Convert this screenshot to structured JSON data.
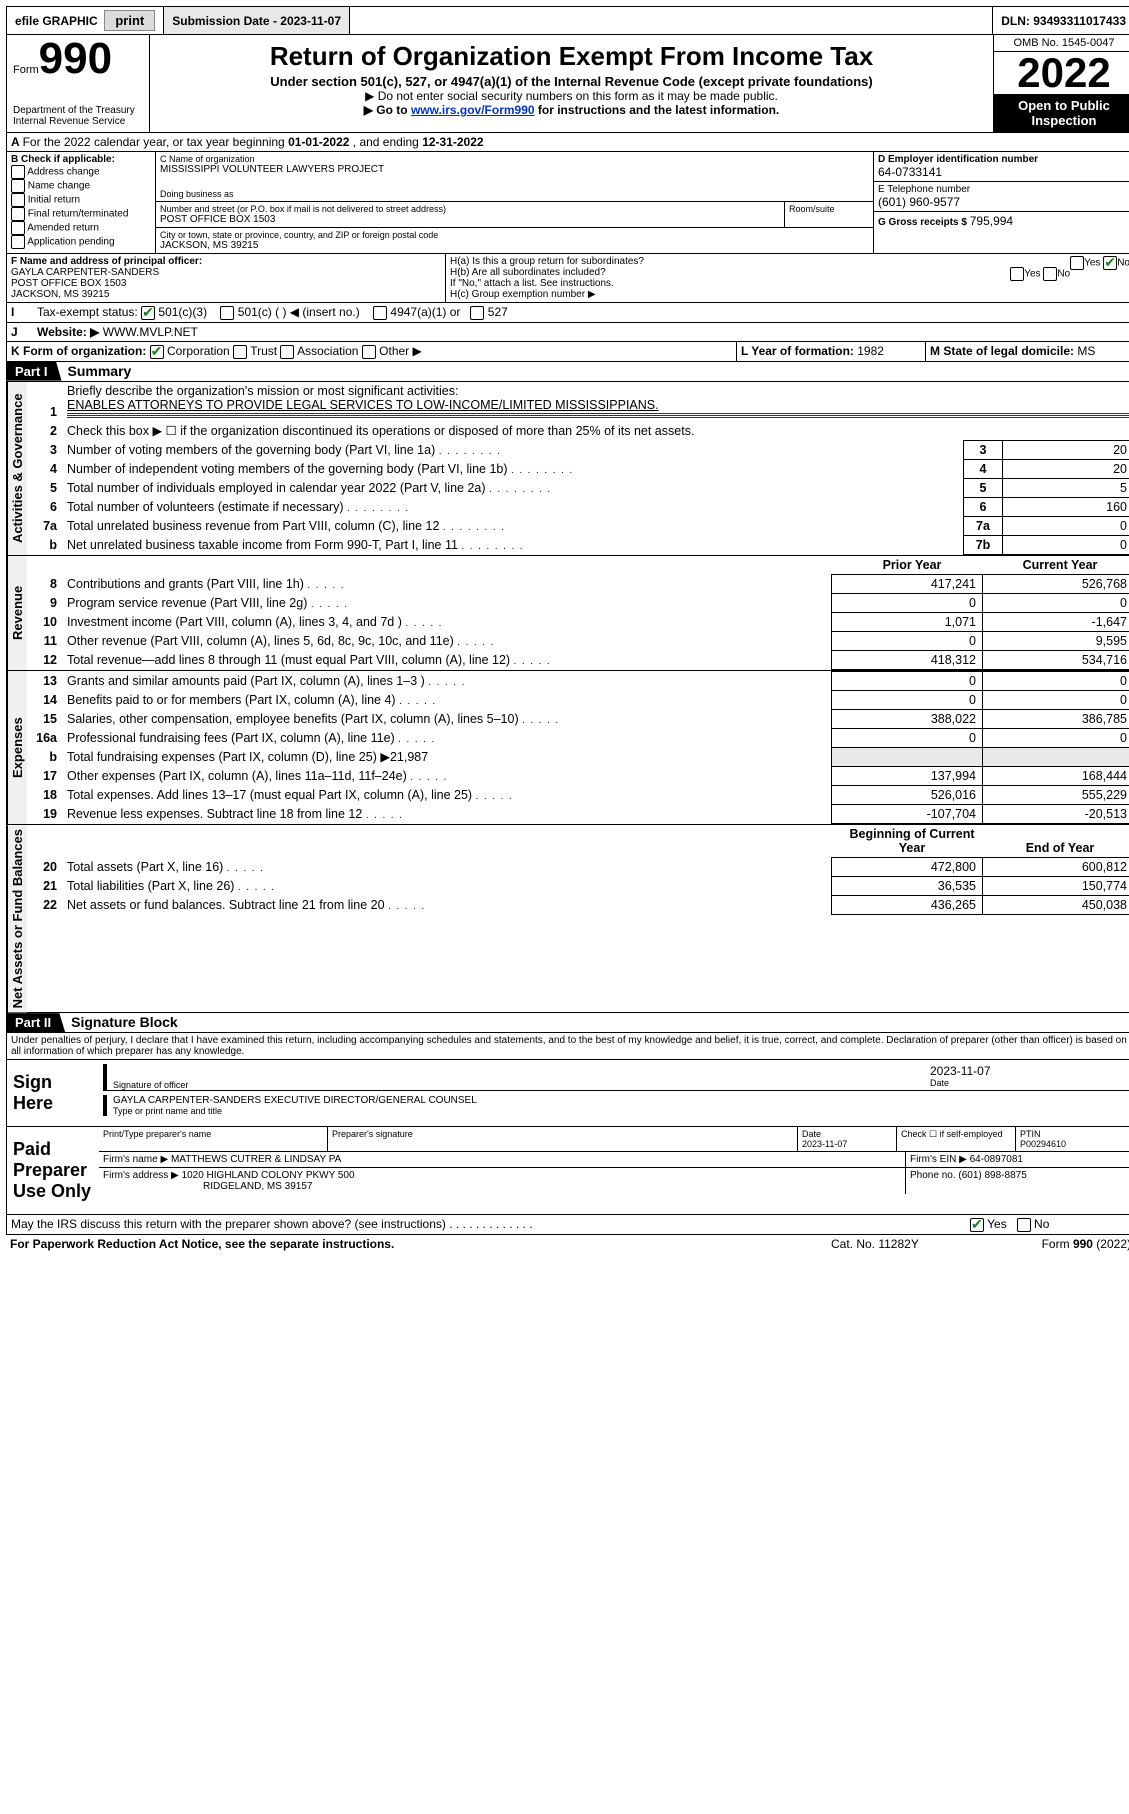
{
  "topbar": {
    "efile": "efile GRAPHIC",
    "print": "print",
    "submission_label": "Submission Date - ",
    "submission_date": "2023-11-07",
    "dln_label": "DLN: ",
    "dln": "93493311017433"
  },
  "header": {
    "form_label": "Form",
    "form_number": "990",
    "dept": "Department of the Treasury",
    "irs": "Internal Revenue Service",
    "title": "Return of Organization Exempt From Income Tax",
    "sub1": "Under section 501(c), 527, or 4947(a)(1) of the Internal Revenue Code (except private foundations)",
    "sub2": "▶ Do not enter social security numbers on this form as it may be made public.",
    "sub3_prefix": "▶ Go to ",
    "sub3_link": "www.irs.gov/Form990",
    "sub3_suffix": " for instructions and the latest information.",
    "omb": "OMB No. 1545-0047",
    "year": "2022",
    "inspect": "Open to Public Inspection"
  },
  "periodA": {
    "text_prefix": "For the 2022 calendar year, or tax year beginning ",
    "begin": "01-01-2022",
    "mid": " , and ending ",
    "end": "12-31-2022"
  },
  "boxB": {
    "label": "B Check if applicable:",
    "items": [
      "Address change",
      "Name change",
      "Initial return",
      "Final return/terminated",
      "Amended return",
      "Application pending"
    ]
  },
  "boxC": {
    "label": "C Name of organization",
    "name": "MISSISSIPPI VOLUNTEER LAWYERS PROJECT",
    "dba_label": "Doing business as",
    "street_label": "Number and street (or P.O. box if mail is not delivered to street address)",
    "room_label": "Room/suite",
    "street": "POST OFFICE BOX 1503",
    "city_label": "City or town, state or province, country, and ZIP or foreign postal code",
    "city": "JACKSON, MS  39215"
  },
  "boxD": {
    "label": "D Employer identification number",
    "value": "64-0733141"
  },
  "boxE": {
    "label": "E Telephone number",
    "value": "(601) 960-9577"
  },
  "boxG": {
    "label": "G Gross receipts $ ",
    "value": "795,994"
  },
  "boxF": {
    "label": "F Name and address of principal officer:",
    "name": "GAYLA CARPENTER-SANDERS",
    "addr1": "POST OFFICE BOX 1503",
    "addr2": "JACKSON, MS  39215"
  },
  "boxH": {
    "a": "H(a)  Is this a group return for subordinates?",
    "b": "H(b)  Are all subordinates included?",
    "bnote": "If \"No,\" attach a list. See instructions.",
    "c": "H(c)  Group exemption number ▶"
  },
  "boxI": {
    "label": "Tax-exempt status:",
    "opts": [
      "501(c)(3)",
      "501(c) (  ) ◀ (insert no.)",
      "4947(a)(1) or",
      "527"
    ]
  },
  "boxJ": {
    "label": "Website: ▶",
    "value": "WWW.MVLP.NET"
  },
  "boxK": {
    "label": "K Form of organization:",
    "opts": [
      "Corporation",
      "Trust",
      "Association",
      "Other ▶"
    ]
  },
  "boxL": {
    "label": "L Year of formation: ",
    "value": "1982"
  },
  "boxM": {
    "label": "M State of legal domicile: ",
    "value": "MS"
  },
  "part1": {
    "tab": "Part I",
    "title": "Summary",
    "line1_label": "Briefly describe the organization's mission or most significant activities:",
    "line1_text": "ENABLES ATTORNEYS TO PROVIDE LEGAL SERVICES TO LOW-INCOME/LIMITED MISSISSIPPIANS.",
    "line2": "Check this box ▶ ☐  if the organization discontinued its operations or disposed of more than 25% of its net assets.",
    "governance_label": "Activities & Governance",
    "revenue_label": "Revenue",
    "expenses_label": "Expenses",
    "netassets_label": "Net Assets or Fund Balances",
    "prior_year": "Prior Year",
    "current_year": "Current Year",
    "beg_year": "Beginning of Current Year",
    "end_year": "End of Year",
    "lines_gov": [
      {
        "n": "3",
        "t": "Number of voting members of the governing body (Part VI, line 1a)",
        "box": "3",
        "v": "20"
      },
      {
        "n": "4",
        "t": "Number of independent voting members of the governing body (Part VI, line 1b)",
        "box": "4",
        "v": "20"
      },
      {
        "n": "5",
        "t": "Total number of individuals employed in calendar year 2022 (Part V, line 2a)",
        "box": "5",
        "v": "5"
      },
      {
        "n": "6",
        "t": "Total number of volunteers (estimate if necessary)",
        "box": "6",
        "v": "160"
      },
      {
        "n": "7a",
        "t": "Total unrelated business revenue from Part VIII, column (C), line 12",
        "box": "7a",
        "v": "0"
      },
      {
        "n": "b",
        "t": "Net unrelated business taxable income from Form 990-T, Part I, line 11",
        "box": "7b",
        "v": "0"
      }
    ],
    "lines_rev": [
      {
        "n": "8",
        "t": "Contributions and grants (Part VIII, line 1h)",
        "p": "417,241",
        "c": "526,768"
      },
      {
        "n": "9",
        "t": "Program service revenue (Part VIII, line 2g)",
        "p": "0",
        "c": "0"
      },
      {
        "n": "10",
        "t": "Investment income (Part VIII, column (A), lines 3, 4, and 7d )",
        "p": "1,071",
        "c": "-1,647"
      },
      {
        "n": "11",
        "t": "Other revenue (Part VIII, column (A), lines 5, 6d, 8c, 9c, 10c, and 11e)",
        "p": "0",
        "c": "9,595"
      },
      {
        "n": "12",
        "t": "Total revenue—add lines 8 through 11 (must equal Part VIII, column (A), line 12)",
        "p": "418,312",
        "c": "534,716"
      }
    ],
    "lines_exp": [
      {
        "n": "13",
        "t": "Grants and similar amounts paid (Part IX, column (A), lines 1–3 )",
        "p": "0",
        "c": "0"
      },
      {
        "n": "14",
        "t": "Benefits paid to or for members (Part IX, column (A), line 4)",
        "p": "0",
        "c": "0"
      },
      {
        "n": "15",
        "t": "Salaries, other compensation, employee benefits (Part IX, column (A), lines 5–10)",
        "p": "388,022",
        "c": "386,785"
      },
      {
        "n": "16a",
        "t": "Professional fundraising fees (Part IX, column (A), line 11e)",
        "p": "0",
        "c": "0"
      },
      {
        "n": "b",
        "t": "Total fundraising expenses (Part IX, column (D), line 25) ▶21,987",
        "p": "",
        "c": "",
        "noval": true
      },
      {
        "n": "17",
        "t": "Other expenses (Part IX, column (A), lines 11a–11d, 11f–24e)",
        "p": "137,994",
        "c": "168,444"
      },
      {
        "n": "18",
        "t": "Total expenses. Add lines 13–17 (must equal Part IX, column (A), line 25)",
        "p": "526,016",
        "c": "555,229"
      },
      {
        "n": "19",
        "t": "Revenue less expenses. Subtract line 18 from line 12",
        "p": "-107,704",
        "c": "-20,513"
      }
    ],
    "lines_net": [
      {
        "n": "20",
        "t": "Total assets (Part X, line 16)",
        "p": "472,800",
        "c": "600,812"
      },
      {
        "n": "21",
        "t": "Total liabilities (Part X, line 26)",
        "p": "36,535",
        "c": "150,774"
      },
      {
        "n": "22",
        "t": "Net assets or fund balances. Subtract line 21 from line 20",
        "p": "436,265",
        "c": "450,038"
      }
    ]
  },
  "part2": {
    "tab": "Part II",
    "title": "Signature Block",
    "penalty": "Under penalties of perjury, I declare that I have examined this return, including accompanying schedules and statements, and to the best of my knowledge and belief, it is true, correct, and complete. Declaration of preparer (other than officer) is based on all information of which preparer has any knowledge.",
    "sign_here": "Sign Here",
    "sig_officer": "Signature of officer",
    "date_label": "Date",
    "sig_date": "2023-11-07",
    "officer_name": "GAYLA CARPENTER-SANDERS  EXECUTIVE DIRECTOR/GENERAL COUNSEL",
    "officer_hint": "Type or print name and title",
    "paid": "Paid Preparer Use Only",
    "prep_name_label": "Print/Type preparer's name",
    "prep_sig_label": "Preparer's signature",
    "prep_date_label": "Date",
    "prep_date": "2023-11-07",
    "check_label": "Check ☐ if self-employed",
    "ptin_label": "PTIN",
    "ptin": "P00294610",
    "firm_name_label": "Firm's name      ▶ ",
    "firm_name": "MATTHEWS CUTRER & LINDSAY PA",
    "firm_ein_label": "Firm's EIN ▶ ",
    "firm_ein": "64-0897081",
    "firm_addr_label": "Firm's address ▶ ",
    "firm_addr1": "1020 HIGHLAND COLONY PKWY 500",
    "firm_addr2": "RIDGELAND, MS  39157",
    "phone_label": "Phone no. ",
    "phone": "(601) 898-8875",
    "discuss": "May the IRS discuss this return with the preparer shown above? (see instructions)"
  },
  "footer": {
    "paperwork": "For Paperwork Reduction Act Notice, see the separate instructions.",
    "cat": "Cat. No. 11282Y",
    "form": "Form 990 (2022)"
  }
}
